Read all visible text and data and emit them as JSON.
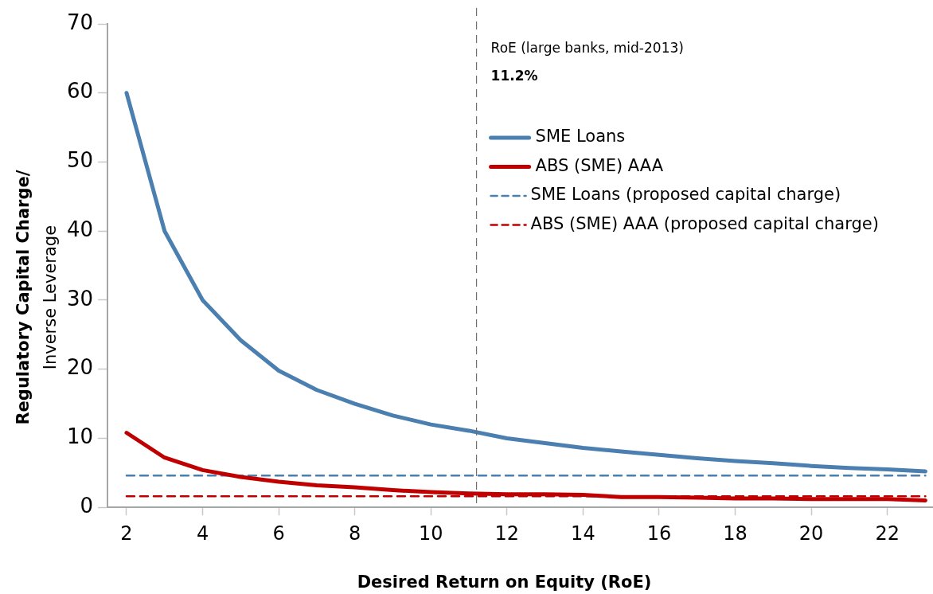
{
  "chart_data": {
    "type": "line",
    "xlabel": "Desired Return on Equity (RoE)",
    "ylabel": "Regulatory Capital Charge/Inverse Leverage",
    "x": [
      2,
      3,
      4,
      5,
      6,
      7,
      8,
      9,
      10,
      11,
      12,
      13,
      14,
      15,
      16,
      17,
      18,
      19,
      20,
      21,
      22,
      23
    ],
    "series": [
      {
        "name": "SME Loans",
        "color": "#4a7fb0",
        "values": [
          60,
          40,
          30,
          24.2,
          19.8,
          17,
          15,
          13.3,
          12,
          11.1,
          10,
          9.3,
          8.6,
          8.1,
          7.6,
          7.1,
          6.7,
          6.4,
          6,
          5.7,
          5.5,
          5.2
        ]
      },
      {
        "name": "ABS (SME) AAA",
        "color": "#c00000",
        "values": [
          10.8,
          7.2,
          5.4,
          4.4,
          3.7,
          3.2,
          2.9,
          2.5,
          2.2,
          2,
          1.9,
          1.9,
          1.8,
          1.5,
          1.5,
          1.4,
          1.3,
          1.3,
          1.2,
          1.2,
          1.2,
          1
        ]
      },
      {
        "name": "SME Loans (proposed capital charge)",
        "color": "#4a7fb0",
        "line_style": "dashed",
        "values": [
          4.6,
          4.6,
          4.6,
          4.6,
          4.6,
          4.6,
          4.6,
          4.6,
          4.6,
          4.6,
          4.6,
          4.6,
          4.6,
          4.6,
          4.6,
          4.6,
          4.6,
          4.6,
          4.6,
          4.6,
          4.6,
          4.6
        ]
      },
      {
        "name": "ABS (SME) AAA (proposed capital charge)",
        "color": "#c00000",
        "line_style": "dashed",
        "values": [
          1.6,
          1.6,
          1.6,
          1.6,
          1.6,
          1.6,
          1.6,
          1.6,
          1.6,
          1.6,
          1.6,
          1.6,
          1.6,
          1.6,
          1.6,
          1.6,
          1.6,
          1.6,
          1.6,
          1.6,
          1.6,
          1.6
        ]
      }
    ],
    "ref_lines": [
      {
        "axis": "x",
        "value": 11.2,
        "label": "RoE (large banks, mid-2013)",
        "color": "#707070",
        "line_style": "dashed"
      }
    ],
    "annotations": [
      "11.2%"
    ],
    "xlim": [
      1.5,
      23.2
    ],
    "xticks": [
      2,
      4,
      6,
      8,
      10,
      12,
      14,
      16,
      18,
      20,
      22
    ],
    "ylim": [
      0,
      70
    ],
    "yticks": [
      0,
      10,
      20,
      30,
      40,
      50,
      60,
      70
    ],
    "grid": false,
    "legend": "top right",
    "marker": "none"
  }
}
